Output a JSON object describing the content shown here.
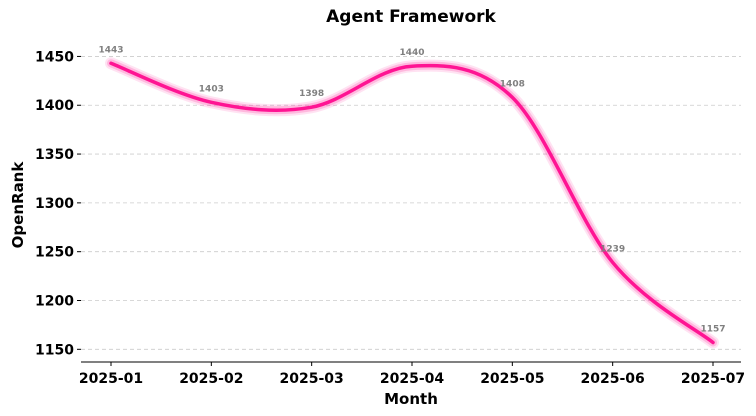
{
  "chart_data": {
    "type": "line",
    "title": "Agent Framework",
    "xlabel": "Month",
    "ylabel": "OpenRank",
    "x": [
      "2025-01",
      "2025-02",
      "2025-03",
      "2025-04",
      "2025-05",
      "2025-06",
      "2025-07"
    ],
    "series": [
      {
        "values": [
          1443,
          1403,
          1398,
          1440,
          1408,
          1239,
          1157
        ],
        "color": "#ff1493"
      }
    ],
    "data_labels": [
      "1443",
      "1403",
      "1398",
      "1440",
      "1408",
      "1239",
      "1157"
    ],
    "y_ticks": [
      1150,
      1200,
      1250,
      1300,
      1350,
      1400,
      1450
    ],
    "ylim": [
      1137,
      1474
    ],
    "grid": "horizontal dashed",
    "legend": "none"
  }
}
